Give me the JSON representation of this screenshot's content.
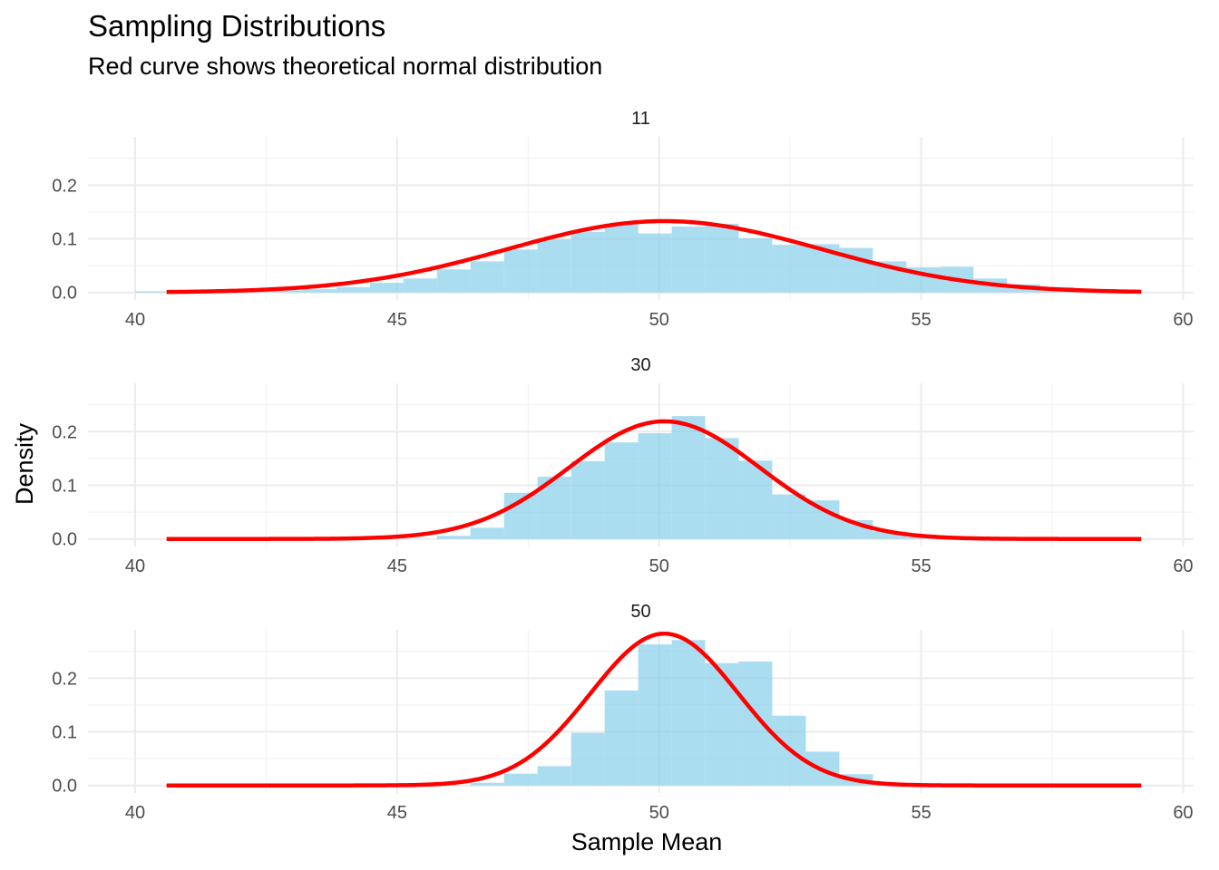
{
  "chart_data": {
    "type": "histogram",
    "title": "Sampling Distributions",
    "subtitle": "Red curve shows theoretical normal distribution",
    "xlabel": "Sample Mean",
    "ylabel": "Density",
    "xlim": [
      39.1,
      60.2
    ],
    "x_ticks": [
      40,
      45,
      50,
      55,
      60
    ],
    "y_ticks": [
      0.0,
      0.1,
      0.2
    ],
    "y_tick_labels": [
      "0.0",
      "0.1",
      "0.2"
    ],
    "grid": true,
    "bar_color": "#87CEEB",
    "curve_color": "#FF0000",
    "bin_width": 0.64,
    "panels": [
      {
        "label": "11",
        "ylim": [
          -0.014,
          0.29
        ],
        "bins": [
          {
            "x0": 40.0,
            "height": 0.002
          },
          {
            "x0": 40.64,
            "height": 0.0
          },
          {
            "x0": 41.28,
            "height": 0.0
          },
          {
            "x0": 41.92,
            "height": 0.003
          },
          {
            "x0": 42.56,
            "height": 0.004
          },
          {
            "x0": 43.2,
            "height": 0.006
          },
          {
            "x0": 43.84,
            "height": 0.01
          },
          {
            "x0": 44.48,
            "height": 0.018
          },
          {
            "x0": 45.12,
            "height": 0.026
          },
          {
            "x0": 45.76,
            "height": 0.043
          },
          {
            "x0": 46.4,
            "height": 0.058
          },
          {
            "x0": 47.04,
            "height": 0.08
          },
          {
            "x0": 47.68,
            "height": 0.099
          },
          {
            "x0": 48.32,
            "height": 0.113
          },
          {
            "x0": 48.96,
            "height": 0.128
          },
          {
            "x0": 49.6,
            "height": 0.11
          },
          {
            "x0": 50.24,
            "height": 0.123
          },
          {
            "x0": 50.88,
            "height": 0.128
          },
          {
            "x0": 51.52,
            "height": 0.101
          },
          {
            "x0": 52.16,
            "height": 0.089
          },
          {
            "x0": 52.8,
            "height": 0.09
          },
          {
            "x0": 53.44,
            "height": 0.083
          },
          {
            "x0": 54.08,
            "height": 0.058
          },
          {
            "x0": 54.72,
            "height": 0.047
          },
          {
            "x0": 55.36,
            "height": 0.048
          },
          {
            "x0": 56.0,
            "height": 0.026
          },
          {
            "x0": 56.64,
            "height": 0.015
          },
          {
            "x0": 57.28,
            "height": 0.01
          },
          {
            "x0": 57.92,
            "height": 0.006
          },
          {
            "x0": 58.56,
            "height": 0.003
          }
        ],
        "curve": {
          "mean": 50.1,
          "sd": 3.0,
          "x_range": [
            40.6,
            59.2
          ]
        }
      },
      {
        "label": "30",
        "ylim": [
          -0.014,
          0.29
        ],
        "bins": [
          {
            "x0": 45.76,
            "height": 0.006
          },
          {
            "x0": 46.4,
            "height": 0.021
          },
          {
            "x0": 47.04,
            "height": 0.086
          },
          {
            "x0": 47.68,
            "height": 0.116
          },
          {
            "x0": 48.32,
            "height": 0.145
          },
          {
            "x0": 48.96,
            "height": 0.18
          },
          {
            "x0": 49.6,
            "height": 0.197
          },
          {
            "x0": 50.24,
            "height": 0.229
          },
          {
            "x0": 50.88,
            "height": 0.188
          },
          {
            "x0": 51.52,
            "height": 0.146
          },
          {
            "x0": 52.16,
            "height": 0.083
          },
          {
            "x0": 52.8,
            "height": 0.072
          },
          {
            "x0": 53.44,
            "height": 0.035
          },
          {
            "x0": 54.08,
            "height": 0.014
          },
          {
            "x0": 54.72,
            "height": 0.004
          }
        ],
        "curve": {
          "mean": 50.1,
          "sd": 1.82,
          "x_range": [
            40.6,
            59.2
          ]
        }
      },
      {
        "label": "50",
        "ylim": [
          -0.014,
          0.29
        ],
        "bins": [
          {
            "x0": 46.4,
            "height": 0.005
          },
          {
            "x0": 47.04,
            "height": 0.022
          },
          {
            "x0": 47.68,
            "height": 0.036
          },
          {
            "x0": 48.32,
            "height": 0.098
          },
          {
            "x0": 48.96,
            "height": 0.177
          },
          {
            "x0": 49.6,
            "height": 0.263
          },
          {
            "x0": 50.24,
            "height": 0.271
          },
          {
            "x0": 50.88,
            "height": 0.228
          },
          {
            "x0": 51.52,
            "height": 0.231
          },
          {
            "x0": 52.16,
            "height": 0.13
          },
          {
            "x0": 52.8,
            "height": 0.063
          },
          {
            "x0": 53.44,
            "height": 0.021
          },
          {
            "x0": 54.08,
            "height": 0.005
          }
        ],
        "curve": {
          "mean": 50.1,
          "sd": 1.41,
          "x_range": [
            40.6,
            59.2
          ]
        }
      }
    ]
  }
}
